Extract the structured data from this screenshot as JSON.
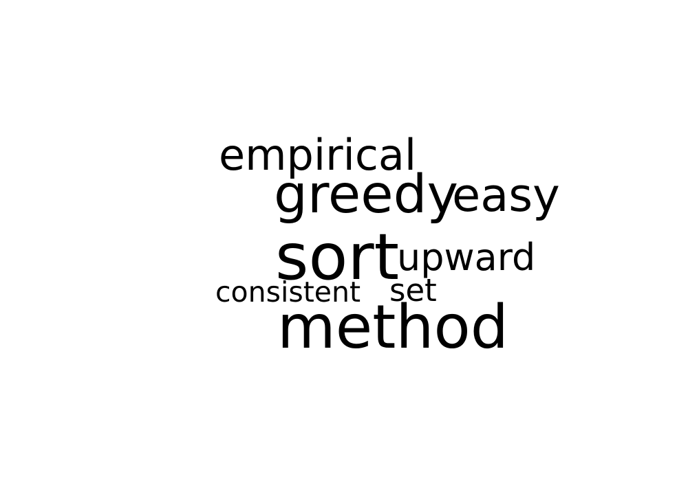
{
  "word_cloud": {
    "words": [
      {
        "text": "empirical"
      },
      {
        "text": "greedy"
      },
      {
        "text": "easy"
      },
      {
        "text": "sort"
      },
      {
        "text": "upward"
      },
      {
        "text": "consistent"
      },
      {
        "text": "set"
      },
      {
        "text": "method"
      }
    ],
    "text_color": "#000000",
    "background_color": "#ffffff"
  }
}
